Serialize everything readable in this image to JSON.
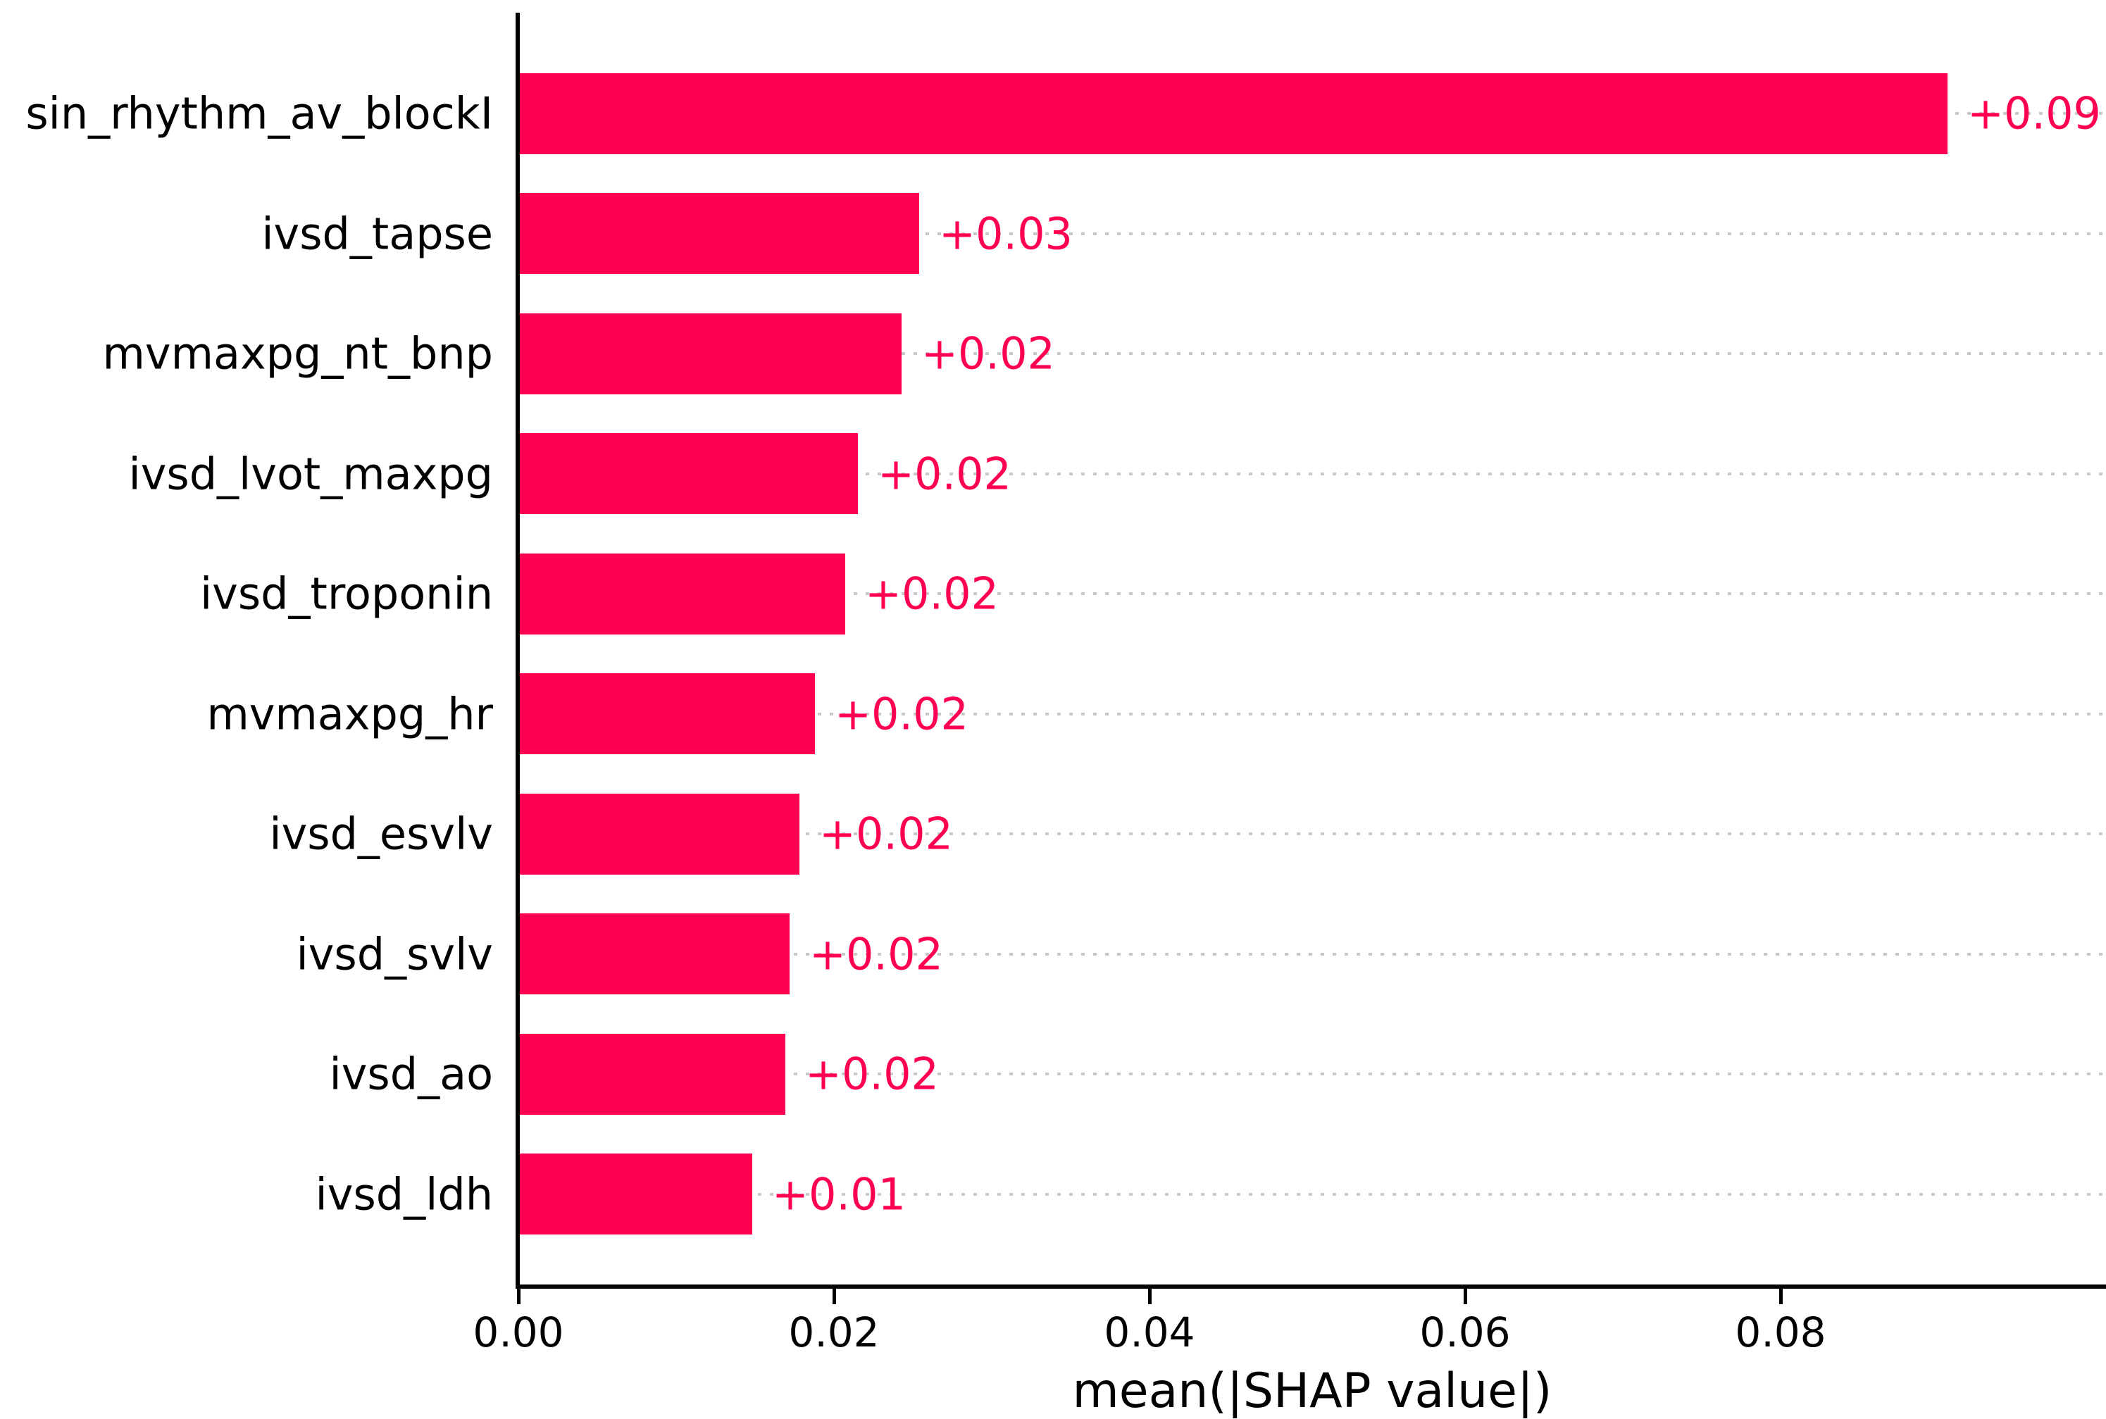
{
  "chart_data": {
    "type": "bar",
    "orientation": "horizontal",
    "title": "",
    "xlabel": "mean(|SHAP value|)",
    "ylabel": "",
    "categories": [
      "sin_rhythm_av_blockI",
      "ivsd_tapse",
      "mvmaxpg_nt_bnp",
      "ivsd_lvot_maxpg",
      "ivsd_troponin",
      "mvmaxpg_hr",
      "ivsd_esvlv",
      "ivsd_svlv",
      "ivsd_ao",
      "ivsd_ldh"
    ],
    "values": [
      0.0906,
      0.0254,
      0.0243,
      0.0215,
      0.0207,
      0.0188,
      0.0178,
      0.0172,
      0.0169,
      0.0148
    ],
    "bar_labels": [
      "+0.09",
      "+0.03",
      "+0.02",
      "+0.02",
      "+0.02",
      "+0.02",
      "+0.02",
      "+0.02",
      "+0.02",
      "+0.01"
    ],
    "x_ticks": {
      "values": [
        0.0,
        0.02,
        0.04,
        0.06,
        0.08
      ],
      "labels": [
        "0.00",
        "0.02",
        "0.04",
        "0.06",
        "0.08"
      ]
    },
    "xlim": [
      0,
      0.1006
    ],
    "grid": "horizontal-dotted",
    "legend": "none",
    "colors": {
      "bar": "#ff0051",
      "value_label": "#ff0051",
      "axis": "#000000",
      "tick_label": "#000000",
      "gridline": "#c9c9c9",
      "background": "#ffffff"
    }
  }
}
